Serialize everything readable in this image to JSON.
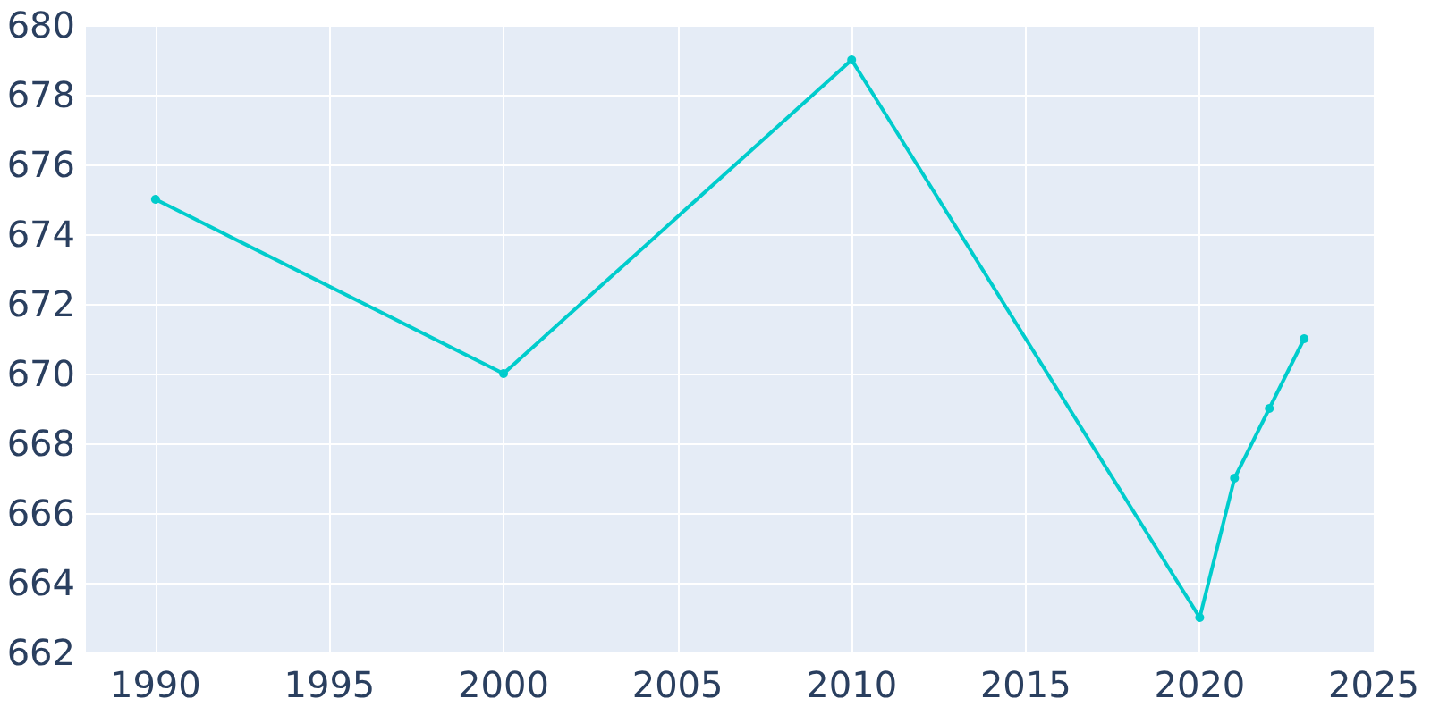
{
  "chart_data": {
    "type": "line",
    "x": [
      1990,
      2000,
      2010,
      2020,
      2021,
      2022,
      2023
    ],
    "series": [
      {
        "color": "#00cccc",
        "values": [
          675,
          670,
          679,
          663,
          667,
          669,
          671
        ]
      }
    ],
    "xlim": [
      1988,
      2025
    ],
    "ylim": [
      662,
      680
    ],
    "xticks": [
      1990,
      1995,
      2000,
      2005,
      2010,
      2015,
      2020,
      2025
    ],
    "yticks": [
      662,
      664,
      666,
      668,
      670,
      672,
      674,
      676,
      678,
      680
    ],
    "grid": true,
    "marker": "circle",
    "line_style": "solid"
  }
}
